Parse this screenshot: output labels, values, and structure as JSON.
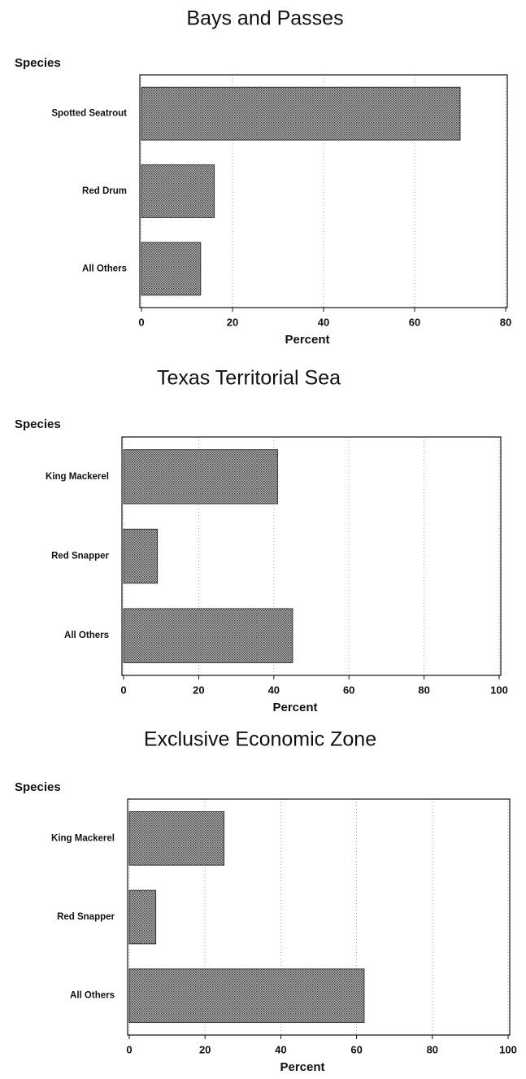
{
  "chart_data": [
    {
      "type": "bar",
      "orientation": "horizontal",
      "title": "Bays and Passes",
      "y_label": "Species",
      "x_label": "Percent",
      "categories": [
        "Spotted Seatrout",
        "Red Drum",
        "All Others"
      ],
      "values": [
        70,
        16,
        13
      ],
      "color": "#6e6e6e",
      "xlim": [
        0,
        80
      ],
      "xticks": [
        0,
        20,
        40,
        60,
        80
      ],
      "grid": true
    },
    {
      "type": "bar",
      "orientation": "horizontal",
      "title": "Texas Territorial Sea",
      "y_label": "Species",
      "x_label": "Percent",
      "categories": [
        "King Mackerel",
        "Red Snapper",
        "All Others"
      ],
      "values": [
        41,
        9,
        45
      ],
      "color": "#6e6e6e",
      "xlim": [
        0,
        100
      ],
      "xticks": [
        0,
        20,
        40,
        60,
        80,
        100
      ],
      "grid": true
    },
    {
      "type": "bar",
      "orientation": "horizontal",
      "title": "Exclusive Economic Zone",
      "y_label": "Species",
      "x_label": "Percent",
      "categories": [
        "King Mackerel",
        "Red Snapper",
        "All Others"
      ],
      "values": [
        25,
        7,
        62
      ],
      "color": "#6e6e6e",
      "xlim": [
        0,
        100
      ],
      "xticks": [
        0,
        20,
        40,
        60,
        80,
        100
      ],
      "grid": true
    }
  ]
}
